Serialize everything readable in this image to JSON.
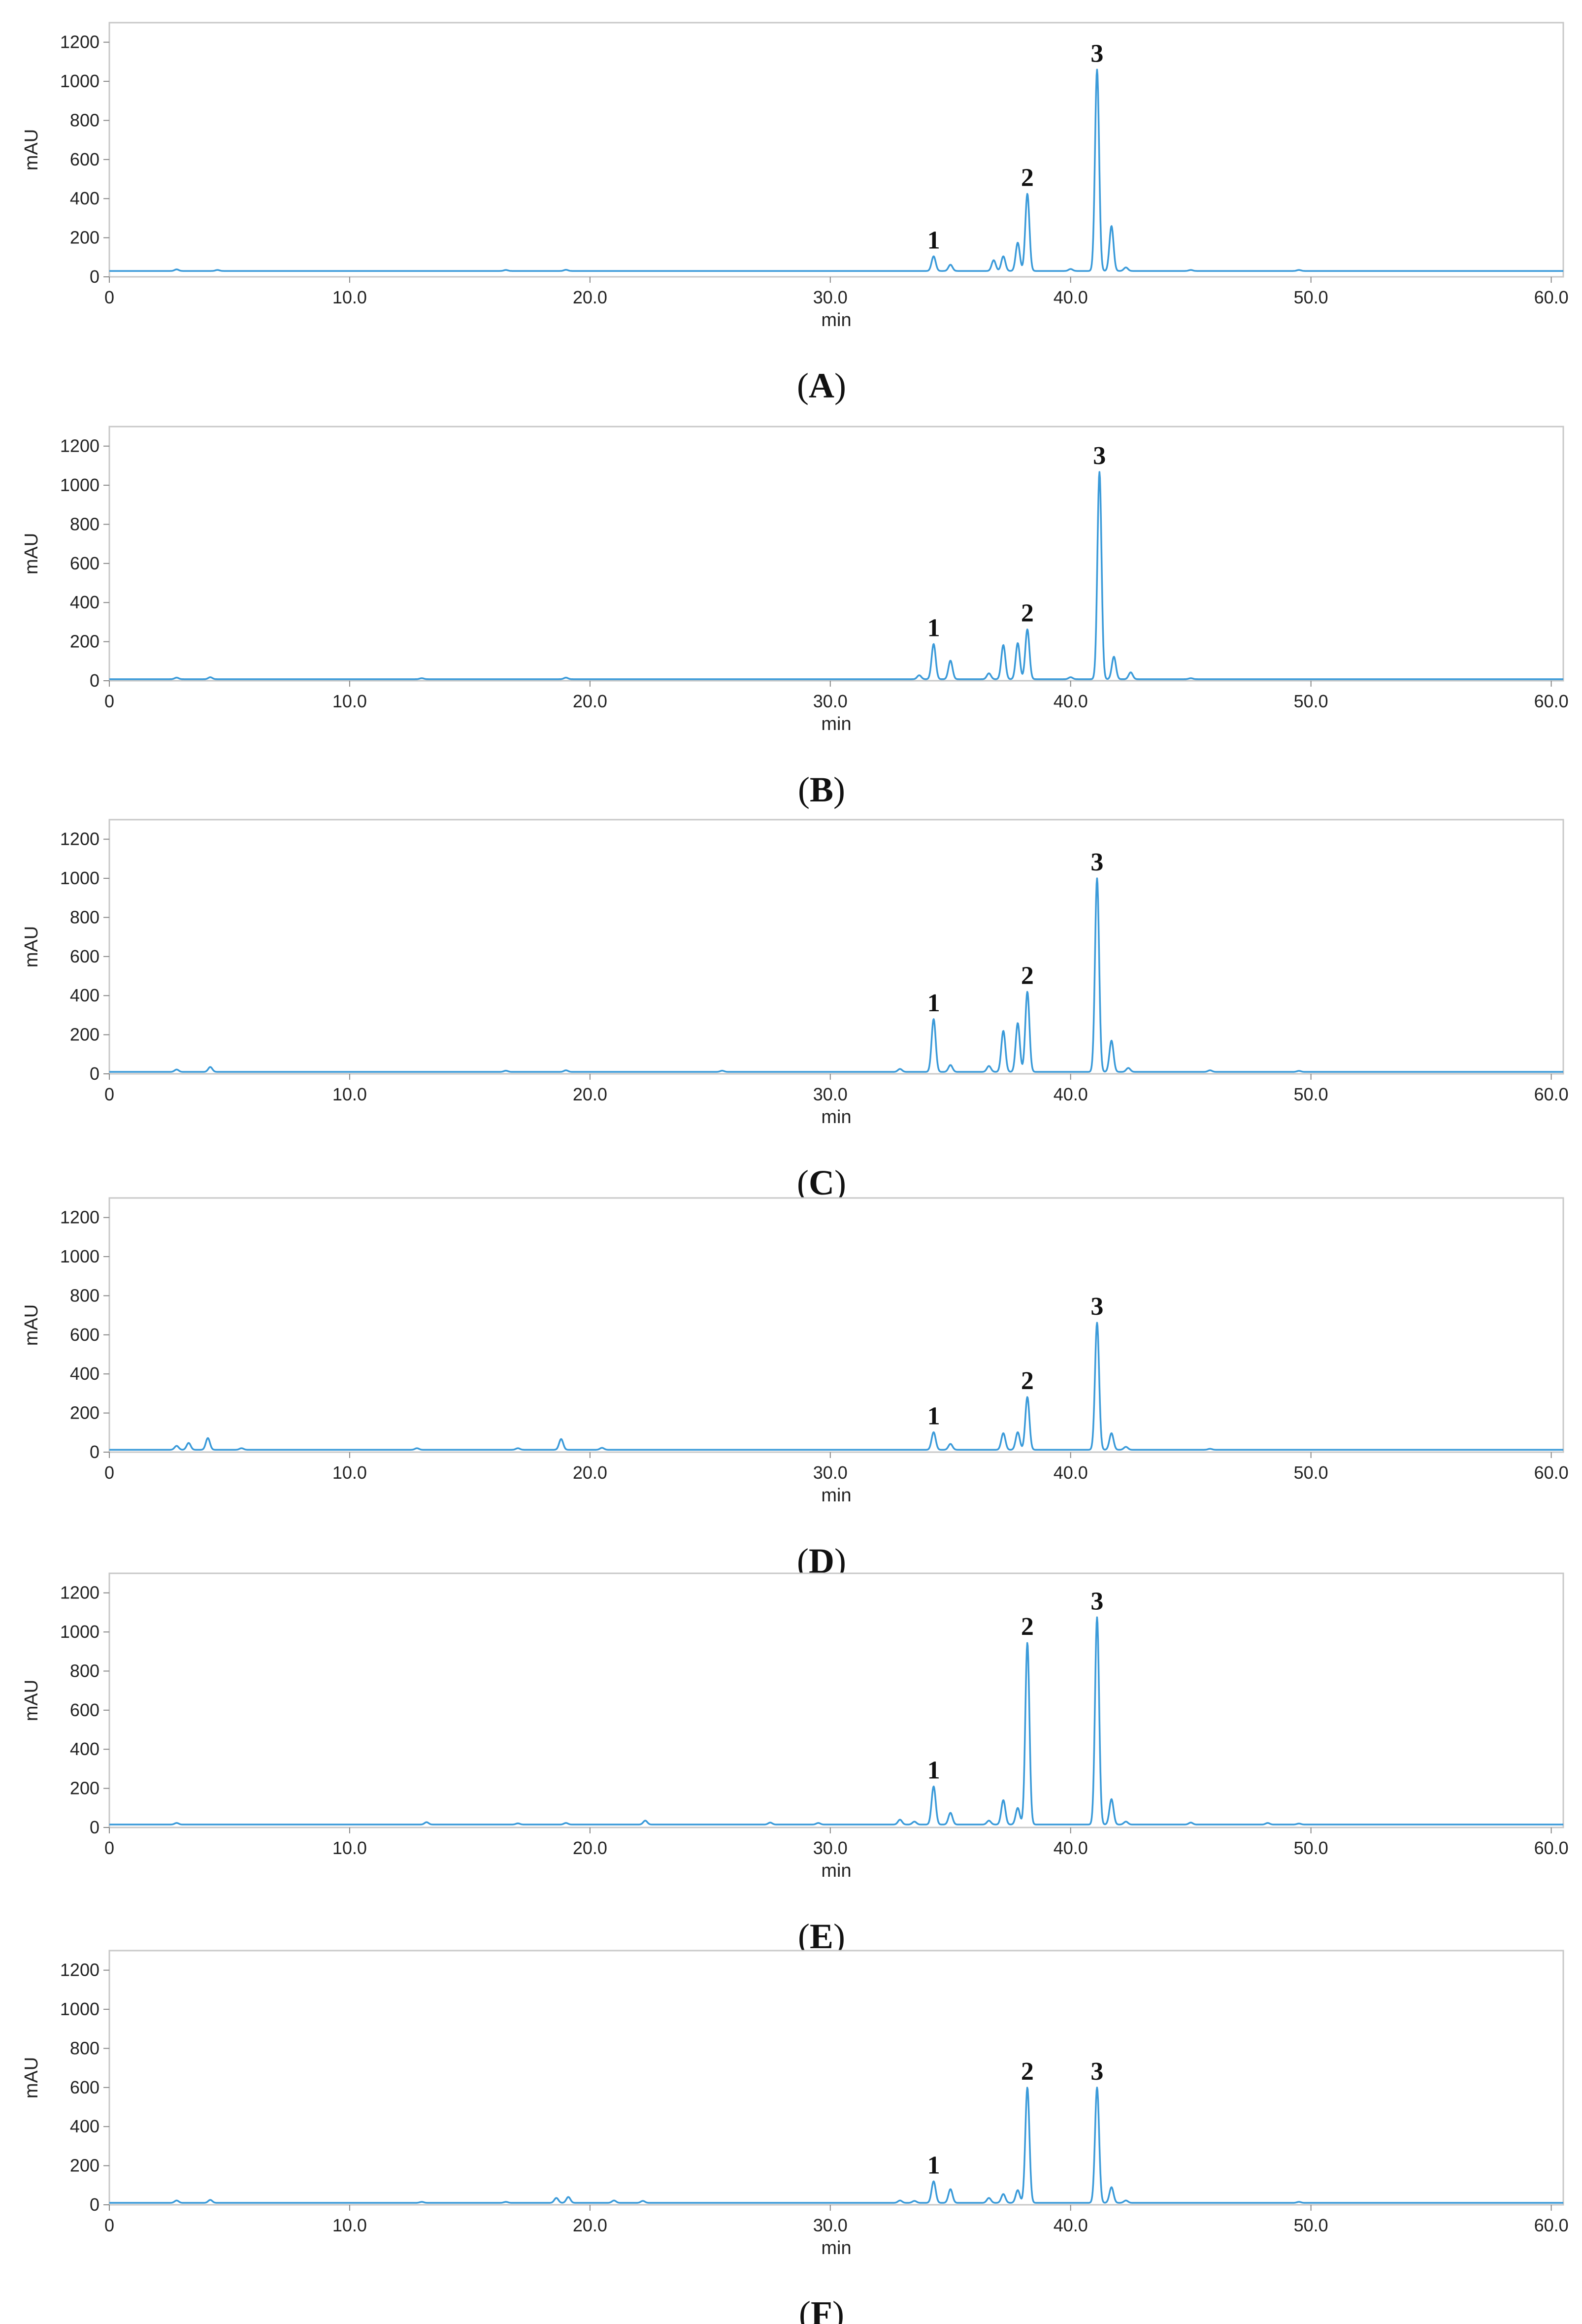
{
  "chart_data": [
    {
      "type": "line",
      "panel": "A",
      "caption": "A",
      "xlabel": "min",
      "ylabel": "mAU",
      "xlim": [
        0,
        60.5
      ],
      "ylim": [
        0,
        1300
      ],
      "xticks": [
        "0",
        "10.0",
        "20.0",
        "30.0",
        "40.0",
        "50.0",
        "60.0"
      ],
      "yticks": [
        "0",
        "200",
        "400",
        "600",
        "800",
        "1000",
        "1200"
      ],
      "baseline": 30,
      "series": [
        {
          "color": "#3a9ad9",
          "peaks": [
            {
              "x": 2.8,
              "y": 8
            },
            {
              "x": 4.5,
              "y": 5
            },
            {
              "x": 16.5,
              "y": 5
            },
            {
              "x": 19,
              "y": 6
            },
            {
              "x": 34.3,
              "y": 75
            },
            {
              "x": 35.0,
              "y": 32
            },
            {
              "x": 36.8,
              "y": 55
            },
            {
              "x": 37.2,
              "y": 75
            },
            {
              "x": 37.8,
              "y": 145
            },
            {
              "x": 38.2,
              "y": 395
            },
            {
              "x": 40.0,
              "y": 10
            },
            {
              "x": 41.1,
              "y": 1030
            },
            {
              "x": 41.7,
              "y": 230
            },
            {
              "x": 42.3,
              "y": 18
            },
            {
              "x": 45,
              "y": 5
            },
            {
              "x": 49.5,
              "y": 5
            }
          ]
        }
      ],
      "annotations": [
        {
          "text": "1",
          "x": 34.3,
          "y": 75
        },
        {
          "text": "2",
          "x": 38.2,
          "y": 395
        },
        {
          "text": "3",
          "x": 41.1,
          "y": 1030
        }
      ]
    },
    {
      "type": "line",
      "panel": "B",
      "caption": "B",
      "xlabel": "min",
      "ylabel": "mAU",
      "xlim": [
        0,
        60.5
      ],
      "ylim": [
        0,
        1300
      ],
      "xticks": [
        "0",
        "10.0",
        "20.0",
        "30.0",
        "40.0",
        "50.0",
        "60.0"
      ],
      "yticks": [
        "0",
        "200",
        "400",
        "600",
        "800",
        "1000",
        "1200"
      ],
      "baseline": 8,
      "series": [
        {
          "color": "#3a9ad9",
          "peaks": [
            {
              "x": 2.8,
              "y": 8
            },
            {
              "x": 4.2,
              "y": 10
            },
            {
              "x": 13,
              "y": 5
            },
            {
              "x": 19,
              "y": 8
            },
            {
              "x": 33.7,
              "y": 20
            },
            {
              "x": 34.3,
              "y": 180
            },
            {
              "x": 35.0,
              "y": 95
            },
            {
              "x": 36.6,
              "y": 30
            },
            {
              "x": 37.2,
              "y": 175
            },
            {
              "x": 37.8,
              "y": 185
            },
            {
              "x": 38.2,
              "y": 255
            },
            {
              "x": 40.0,
              "y": 10
            },
            {
              "x": 41.2,
              "y": 1060
            },
            {
              "x": 41.8,
              "y": 115
            },
            {
              "x": 42.5,
              "y": 35
            },
            {
              "x": 45,
              "y": 5
            }
          ]
        }
      ],
      "annotations": [
        {
          "text": "1",
          "x": 34.3,
          "y": 180
        },
        {
          "text": "2",
          "x": 38.2,
          "y": 255
        },
        {
          "text": "3",
          "x": 41.2,
          "y": 1060
        }
      ]
    },
    {
      "type": "line",
      "panel": "C",
      "caption": "C",
      "xlabel": "min",
      "ylabel": "mAU",
      "xlim": [
        0,
        60.5
      ],
      "ylim": [
        0,
        1300
      ],
      "xticks": [
        "0",
        "10.0",
        "20.0",
        "30.0",
        "40.0",
        "50.0",
        "60.0"
      ],
      "yticks": [
        "0",
        "200",
        "400",
        "600",
        "800",
        "1000",
        "1200"
      ],
      "baseline": 10,
      "series": [
        {
          "color": "#3a9ad9",
          "peaks": [
            {
              "x": 2.8,
              "y": 12
            },
            {
              "x": 4.2,
              "y": 25
            },
            {
              "x": 16.5,
              "y": 6
            },
            {
              "x": 19,
              "y": 8
            },
            {
              "x": 25.5,
              "y": 6
            },
            {
              "x": 32.9,
              "y": 15
            },
            {
              "x": 34.3,
              "y": 270
            },
            {
              "x": 35.0,
              "y": 35
            },
            {
              "x": 36.6,
              "y": 30
            },
            {
              "x": 37.2,
              "y": 210
            },
            {
              "x": 37.8,
              "y": 250
            },
            {
              "x": 38.2,
              "y": 410
            },
            {
              "x": 41.1,
              "y": 990
            },
            {
              "x": 41.7,
              "y": 160
            },
            {
              "x": 42.4,
              "y": 20
            },
            {
              "x": 45.8,
              "y": 8
            },
            {
              "x": 49.5,
              "y": 5
            }
          ]
        }
      ],
      "annotations": [
        {
          "text": "1",
          "x": 34.3,
          "y": 270
        },
        {
          "text": "2",
          "x": 38.2,
          "y": 410
        },
        {
          "text": "3",
          "x": 41.1,
          "y": 990
        }
      ]
    },
    {
      "type": "line",
      "panel": "D",
      "caption": "D",
      "xlabel": "min",
      "ylabel": "mAU",
      "xlim": [
        0,
        60.5
      ],
      "ylim": [
        0,
        1300
      ],
      "xticks": [
        "0",
        "10.0",
        "20.0",
        "30.0",
        "40.0",
        "50.0",
        "60.0"
      ],
      "yticks": [
        "0",
        "200",
        "400",
        "600",
        "800",
        "1000",
        "1200"
      ],
      "baseline": 12,
      "series": [
        {
          "color": "#3a9ad9",
          "peaks": [
            {
              "x": 2.8,
              "y": 20
            },
            {
              "x": 3.3,
              "y": 35
            },
            {
              "x": 4.1,
              "y": 60
            },
            {
              "x": 5.5,
              "y": 8
            },
            {
              "x": 12.8,
              "y": 8
            },
            {
              "x": 17,
              "y": 8
            },
            {
              "x": 18.8,
              "y": 55
            },
            {
              "x": 20.5,
              "y": 10
            },
            {
              "x": 34.3,
              "y": 90
            },
            {
              "x": 35.0,
              "y": 30
            },
            {
              "x": 37.2,
              "y": 85
            },
            {
              "x": 37.8,
              "y": 90
            },
            {
              "x": 38.2,
              "y": 270
            },
            {
              "x": 41.1,
              "y": 650
            },
            {
              "x": 41.7,
              "y": 85
            },
            {
              "x": 42.3,
              "y": 15
            },
            {
              "x": 45.8,
              "y": 5
            }
          ]
        }
      ],
      "annotations": [
        {
          "text": "1",
          "x": 34.3,
          "y": 90
        },
        {
          "text": "2",
          "x": 38.2,
          "y": 270
        },
        {
          "text": "3",
          "x": 41.1,
          "y": 650
        }
      ]
    },
    {
      "type": "line",
      "panel": "E",
      "caption": "E",
      "xlabel": "min",
      "ylabel": "mAU",
      "xlim": [
        0,
        60.5
      ],
      "ylim": [
        0,
        1300
      ],
      "xticks": [
        "0",
        "10.0",
        "20.0",
        "30.0",
        "40.0",
        "50.0",
        "60.0"
      ],
      "yticks": [
        "0",
        "200",
        "400",
        "600",
        "800",
        "1000",
        "1200"
      ],
      "baseline": 15,
      "series": [
        {
          "color": "#3a9ad9",
          "peaks": [
            {
              "x": 2.8,
              "y": 8
            },
            {
              "x": 13.2,
              "y": 12
            },
            {
              "x": 17,
              "y": 6
            },
            {
              "x": 19,
              "y": 8
            },
            {
              "x": 22.3,
              "y": 20
            },
            {
              "x": 27.5,
              "y": 10
            },
            {
              "x": 29.5,
              "y": 8
            },
            {
              "x": 32.9,
              "y": 25
            },
            {
              "x": 33.5,
              "y": 15
            },
            {
              "x": 34.3,
              "y": 195
            },
            {
              "x": 35.0,
              "y": 60
            },
            {
              "x": 36.6,
              "y": 20
            },
            {
              "x": 37.2,
              "y": 125
            },
            {
              "x": 37.8,
              "y": 85
            },
            {
              "x": 38.2,
              "y": 930
            },
            {
              "x": 41.1,
              "y": 1060
            },
            {
              "x": 41.7,
              "y": 130
            },
            {
              "x": 42.3,
              "y": 15
            },
            {
              "x": 45,
              "y": 10
            },
            {
              "x": 48.2,
              "y": 8
            },
            {
              "x": 49.5,
              "y": 5
            }
          ]
        }
      ],
      "annotations": [
        {
          "text": "1",
          "x": 34.3,
          "y": 195
        },
        {
          "text": "2",
          "x": 38.2,
          "y": 930
        },
        {
          "text": "3",
          "x": 41.1,
          "y": 1060
        }
      ]
    },
    {
      "type": "line",
      "panel": "F",
      "caption": "F",
      "xlabel": "min",
      "ylabel": "mAU",
      "xlim": [
        0,
        60.5
      ],
      "ylim": [
        0,
        1300
      ],
      "xticks": [
        "0",
        "10.0",
        "20.0",
        "30.0",
        "40.0",
        "50.0",
        "60.0"
      ],
      "yticks": [
        "0",
        "200",
        "400",
        "600",
        "800",
        "1000",
        "1200"
      ],
      "baseline": 10,
      "series": [
        {
          "color": "#3a9ad9",
          "peaks": [
            {
              "x": 2.8,
              "y": 12
            },
            {
              "x": 4.2,
              "y": 15
            },
            {
              "x": 13,
              "y": 5
            },
            {
              "x": 16.5,
              "y": 5
            },
            {
              "x": 18.6,
              "y": 25
            },
            {
              "x": 19.1,
              "y": 30
            },
            {
              "x": 21,
              "y": 12
            },
            {
              "x": 22.2,
              "y": 10
            },
            {
              "x": 32.9,
              "y": 12
            },
            {
              "x": 33.5,
              "y": 10
            },
            {
              "x": 34.3,
              "y": 110
            },
            {
              "x": 35.0,
              "y": 70
            },
            {
              "x": 36.6,
              "y": 25
            },
            {
              "x": 37.2,
              "y": 45
            },
            {
              "x": 37.8,
              "y": 65
            },
            {
              "x": 38.2,
              "y": 590
            },
            {
              "x": 41.1,
              "y": 590
            },
            {
              "x": 41.7,
              "y": 80
            },
            {
              "x": 42.3,
              "y": 12
            },
            {
              "x": 49.5,
              "y": 5
            }
          ]
        }
      ],
      "annotations": [
        {
          "text": "1",
          "x": 34.3,
          "y": 110
        },
        {
          "text": "2",
          "x": 38.2,
          "y": 590
        },
        {
          "text": "3",
          "x": 41.1,
          "y": 590
        }
      ]
    }
  ]
}
